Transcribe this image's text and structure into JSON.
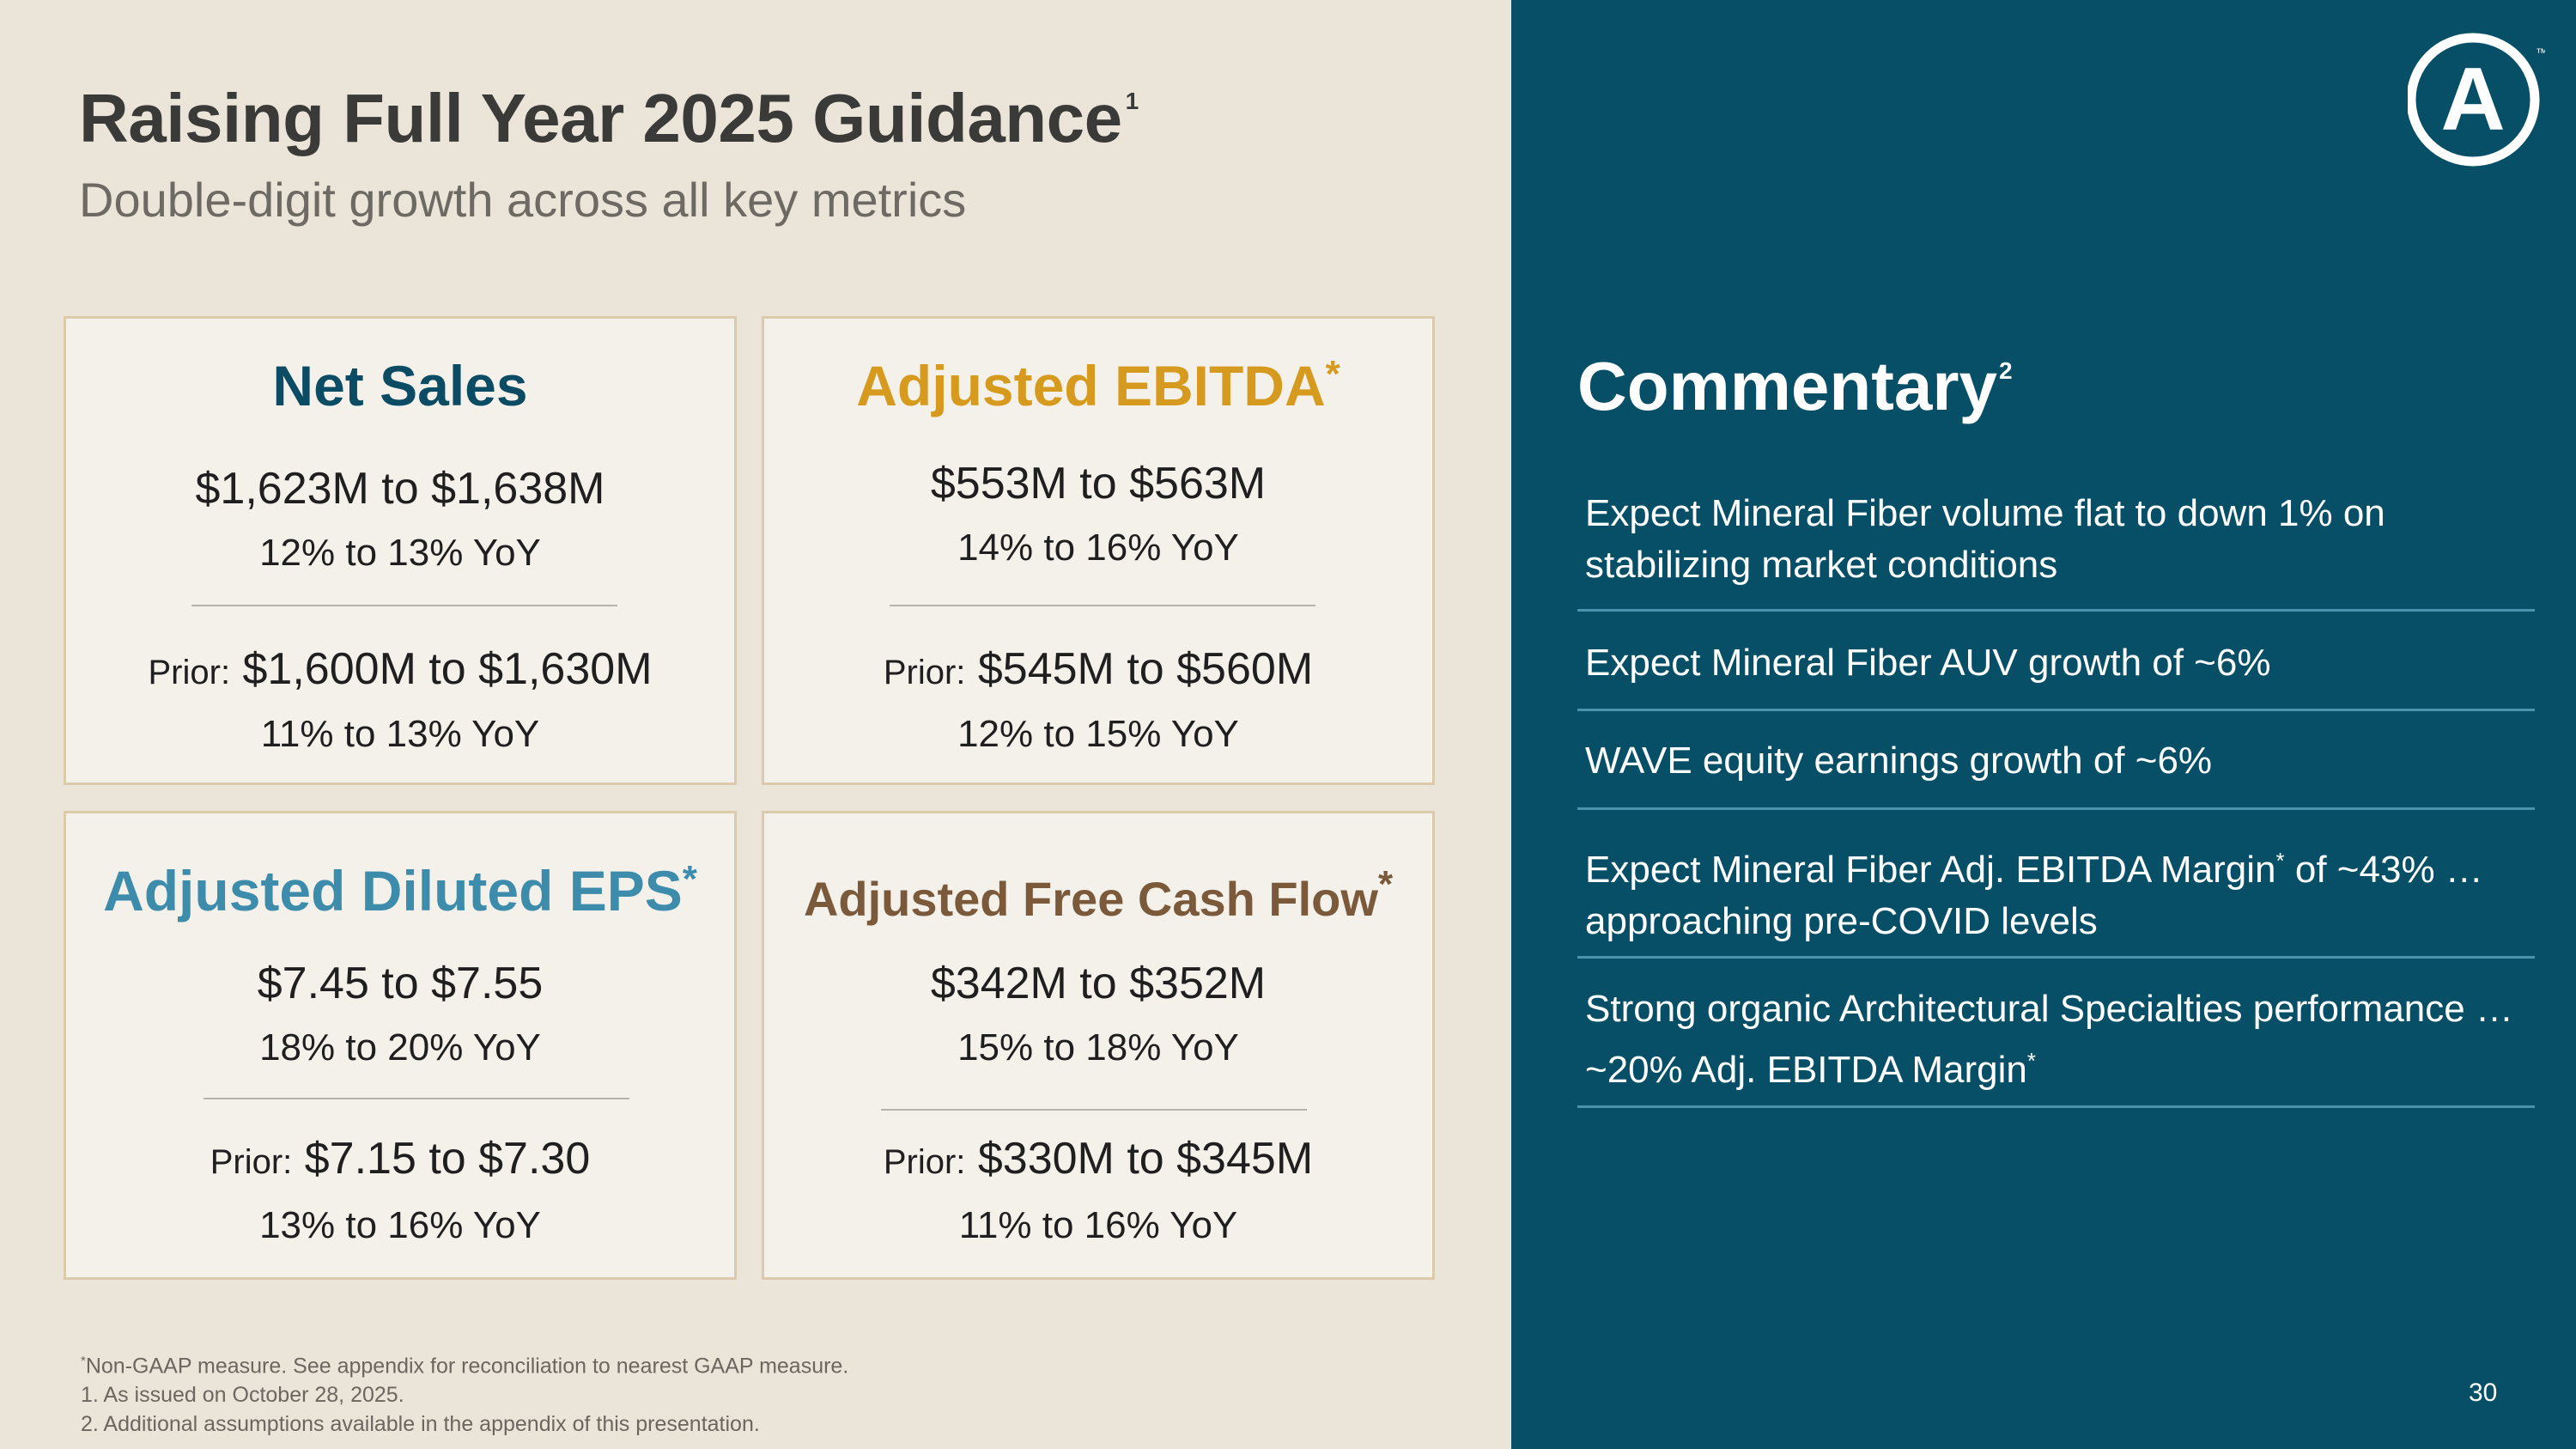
{
  "slide": {
    "title": "Raising Full Year 2025 Guidance",
    "title_superscript": "1",
    "subtitle": "Double-digit growth across all key metrics",
    "page_number": "30"
  },
  "cards": [
    {
      "title": "Net Sales",
      "asterisk": "",
      "range": "$1,623M to $1,638M",
      "yoy": "12% to 13% YoY",
      "prior_label": "Prior:",
      "prior_range": "$1,600M to $1,630M",
      "prior_yoy": "11% to 13% YoY"
    },
    {
      "title": "Adjusted EBITDA",
      "asterisk": "*",
      "range": "$553M to $563M",
      "yoy": "14% to 16% YoY",
      "prior_label": "Prior:",
      "prior_range": "$545M to $560M",
      "prior_yoy": "12% to 15% YoY"
    },
    {
      "title": "Adjusted Diluted EPS",
      "asterisk": "*",
      "range": "$7.45 to $7.55",
      "yoy": "18% to 20% YoY",
      "prior_label": "Prior:",
      "prior_range": "$7.15 to $7.30",
      "prior_yoy": "13% to 16% YoY"
    },
    {
      "title": "Adjusted Free Cash Flow",
      "asterisk": "*",
      "range": "$342M to $352M",
      "yoy": "15% to 18% YoY",
      "prior_label": "Prior:",
      "prior_range": "$330M to $345M",
      "prior_yoy": "11% to 16% YoY"
    }
  ],
  "footnotes": {
    "asterisk": "*",
    "non_gaap": "Non-GAAP measure. See appendix for reconciliation to nearest GAAP measure.",
    "note1": "1. As issued on October 28, 2025.",
    "note2": "2. Additional assumptions available in the appendix of this presentation."
  },
  "commentary": {
    "title": "Commentary",
    "title_superscript": "2",
    "items": [
      {
        "text": "Expect Mineral Fiber volume flat to down 1% on stabilizing market conditions"
      },
      {
        "text": "Expect Mineral Fiber AUV growth of ~6%"
      },
      {
        "text": "WAVE equity earnings growth of ~6%"
      },
      {
        "text_a": "Expect Mineral Fiber Adj. EBITDA Margin",
        "asterisk": "*",
        "text_b": " of ~43% … approaching pre-COVID levels"
      },
      {
        "text_a": "Strong organic Architectural Specialties performance … ~20% Adj. EBITDA Margin",
        "asterisk": "*"
      }
    ]
  },
  "logo": {
    "letter": "A",
    "mark": "™"
  },
  "colors": {
    "left_bg": "#ebe4d9",
    "right_bg": "#064f66",
    "net_sales": "#0b4b63",
    "ebitda": "#d69a1f",
    "eps": "#3d8cab",
    "fcf": "#7a5a3a"
  }
}
